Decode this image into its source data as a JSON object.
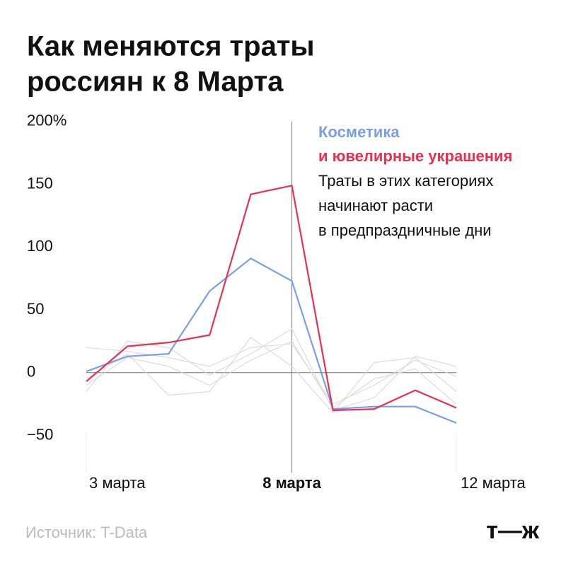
{
  "chart_data": {
    "type": "line",
    "title": [
      "Как меняются траты",
      "россиян к 8 Марта"
    ],
    "categories": [
      "3 марта",
      null,
      null,
      null,
      null,
      "8 марта",
      null,
      null,
      null,
      "12 марта"
    ],
    "highlight_category": 5,
    "ylim": [
      -70,
      210
    ],
    "yticks": [
      {
        "value": 200,
        "label": "200%"
      },
      150,
      100,
      50,
      0,
      {
        "value": -50,
        "label": "−50"
      }
    ],
    "series": [
      {
        "color": "#dcdcdc",
        "values": [
          20,
          17,
          12,
          5,
          20,
          23,
          -25,
          -10,
          10,
          -3
        ]
      },
      {
        "color": "#dcdcdc",
        "values": [
          -15,
          25,
          20,
          -2,
          15,
          35,
          -30,
          -20,
          13,
          5
        ]
      },
      {
        "color": "#dcdcdc",
        "values": [
          -5,
          15,
          -18,
          -15,
          28,
          5,
          -32,
          8,
          12,
          -15
        ]
      },
      {
        "color": "#dcdcdc",
        "values": [
          -10,
          12,
          5,
          -10,
          10,
          25,
          -28,
          -5,
          3,
          -25
        ]
      },
      {
        "name": "Косметика",
        "color": "#7b9fe6",
        "values": [
          1,
          13,
          15,
          65,
          91,
          73,
          -29,
          -27,
          -27,
          -40
        ]
      },
      {
        "name": "и ювелирные украшения",
        "color": "#e8304f",
        "values": [
          -7,
          21,
          24,
          30,
          142,
          149,
          -30,
          -29,
          -14,
          -28
        ]
      }
    ],
    "annotation": [
      "Траты в этих категориях",
      "начинают расти",
      "в предпраздничные дни"
    ],
    "source": "Источник: T-Data",
    "logo": "т—ж"
  }
}
